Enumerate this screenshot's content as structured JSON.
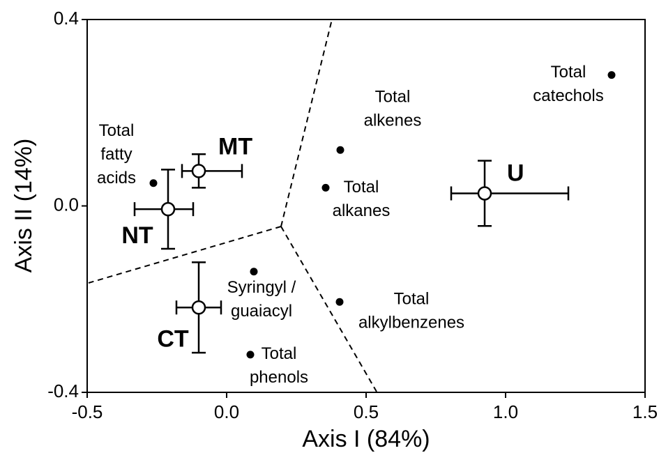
{
  "chart_data": {
    "type": "scatter",
    "xlabel": "Axis I (84%)",
    "ylabel": "Axis II (14%)",
    "xlim": [
      -0.5,
      1.5
    ],
    "ylim": [
      -0.4,
      0.4
    ],
    "xticks": [
      -0.5,
      {
        "value": 0,
        "label": "0.0"
      },
      0.5,
      {
        "value": 1,
        "label": "1.0"
      },
      1.5
    ],
    "yticks": [
      -0.4,
      {
        "value": 0,
        "label": "0.0"
      },
      0.4
    ],
    "series": [
      {
        "marker": "open",
        "color": "#000000",
        "labels": [
          "MT",
          "NT",
          "CT",
          "U"
        ],
        "x": [
          -0.1,
          -0.21,
          -0.1,
          0.925
        ],
        "y": [
          0.075,
          -0.007,
          -0.218,
          0.027
        ],
        "xerr_minus": [
          0.06,
          0.12,
          0.08,
          0.12
        ],
        "xerr_plus": [
          0.155,
          0.09,
          0.08,
          0.3
        ],
        "yerr": [
          0.036,
          0.085,
          0.097,
          0.07
        ]
      },
      {
        "marker": "filled",
        "color": "#000000",
        "labels": [
          [
            "Total",
            "fatty",
            "acids"
          ],
          [
            "Total",
            "alkenes"
          ],
          [
            "Total",
            "alkanes"
          ],
          [
            "Total",
            "catechols"
          ],
          [
            "Syringyl /",
            "guaiacyl"
          ],
          [
            "Total",
            "alkylbenzenes"
          ],
          [
            "Total",
            "phenols"
          ]
        ],
        "x": [
          -0.2625,
          0.4075,
          0.355,
          1.38,
          0.0975,
          0.405,
          0.085
        ],
        "y": [
          0.049,
          0.12,
          0.039,
          0.281,
          -0.141,
          -0.206,
          -0.319
        ]
      }
    ]
  }
}
